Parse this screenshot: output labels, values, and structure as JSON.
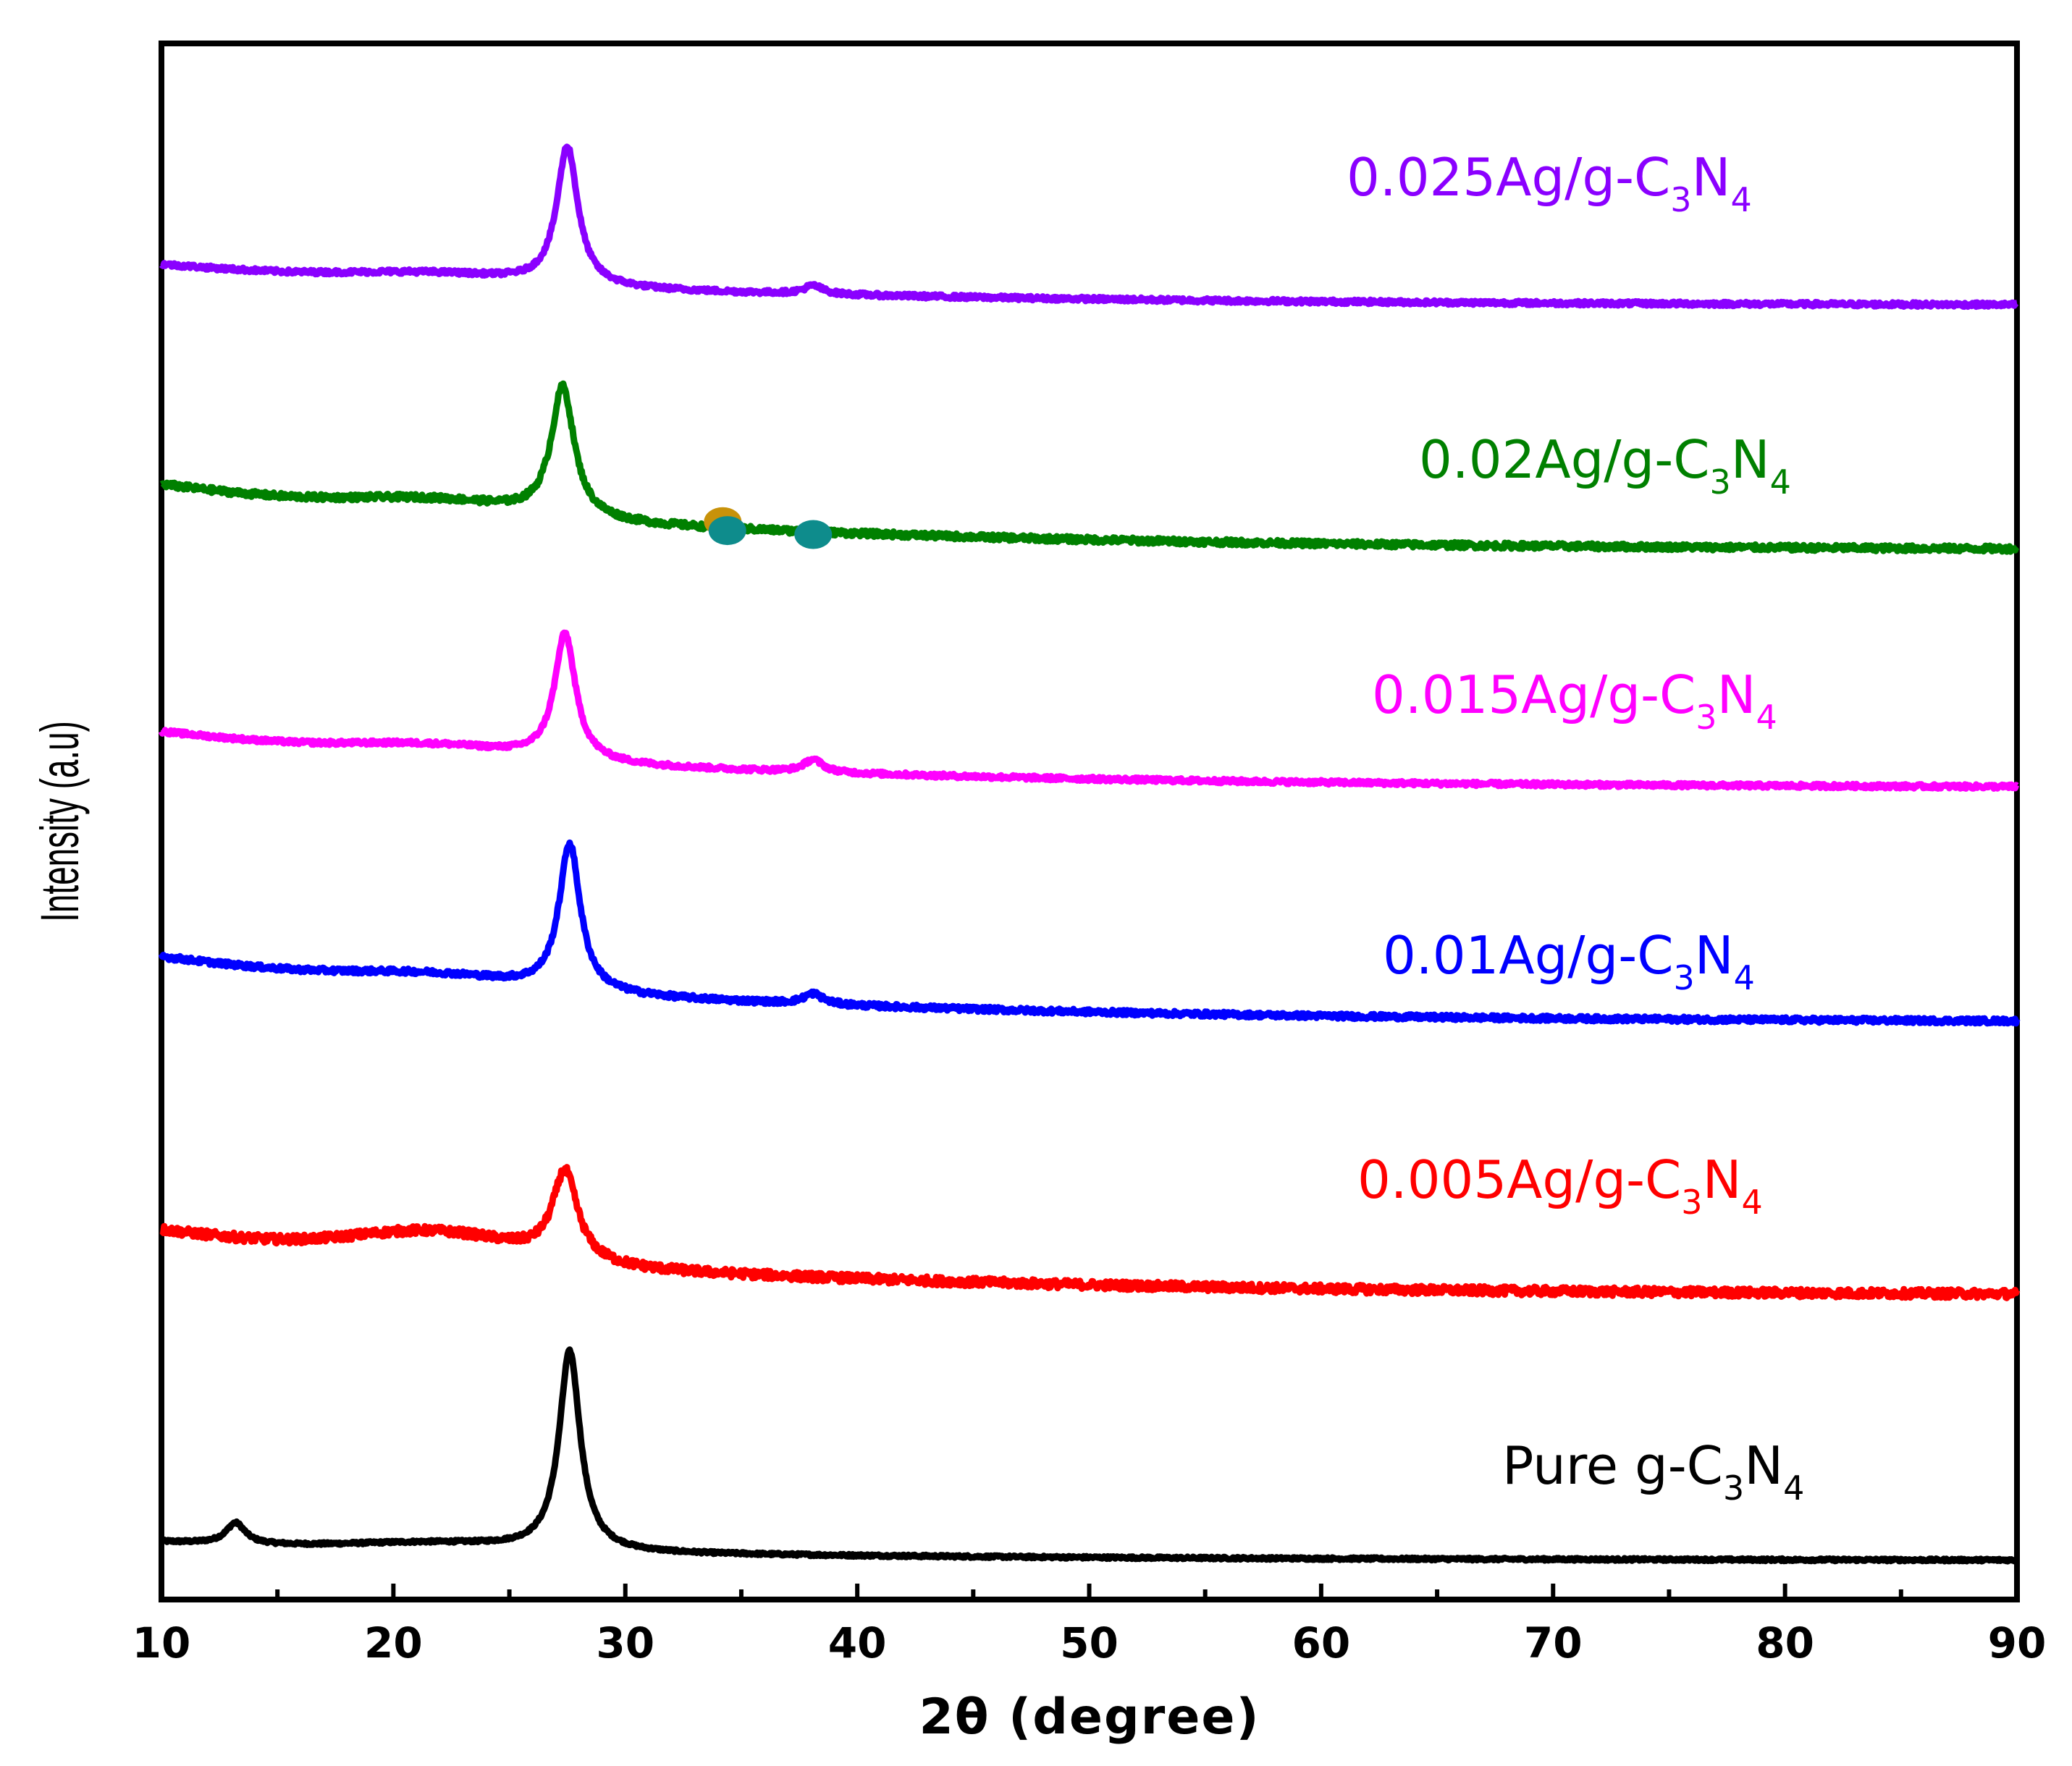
{
  "chart_data": {
    "type": "line",
    "title": "",
    "xlabel": "2θ (degree)",
    "ylabel": "Intensity (a.u)",
    "xlim": [
      10,
      90
    ],
    "xticks": [
      10,
      20,
      30,
      40,
      50,
      60,
      70,
      80,
      90
    ],
    "yticks_shown": false,
    "grid": false,
    "legend": "inline labels at right end of each trace",
    "series": [
      {
        "name": "Pure g-C3N4",
        "label_main": "Pure g-C",
        "label_sub1": "3",
        "label_mid": "N",
        "label_sub2": "4",
        "color": "#000000",
        "offset": 0,
        "baseline": 0.1,
        "peaks": [
          {
            "position": 27.6,
            "height": 0.95,
            "width": 0.55
          },
          {
            "position": 13.2,
            "height": 0.1,
            "width": 0.5
          }
        ],
        "hump_height": 0.03,
        "noise": 0.006
      },
      {
        "name": "0.005Ag/g-C3N4",
        "label_main": "0.005Ag/g-C",
        "label_sub1": "3",
        "label_mid": "N",
        "label_sub2": "4",
        "color": "#ff0000",
        "offset": 1.1,
        "baseline": 0.35,
        "peaks": [
          {
            "position": 27.4,
            "height": 0.42,
            "width": 0.65
          }
        ],
        "hump_height": 0.12,
        "noise": 0.02
      },
      {
        "name": "0.01Ag/g-C3N4",
        "label_main": "0.01Ag/g-C",
        "label_sub1": "3",
        "label_mid": "N",
        "label_sub2": "4",
        "color": "#0000ff",
        "offset": 2.4,
        "baseline": 0.35,
        "peaks": [
          {
            "position": 27.6,
            "height": 0.7,
            "width": 0.55
          },
          {
            "position": 38.1,
            "height": 0.05,
            "width": 0.5
          }
        ],
        "hump_height": 0.05,
        "noise": 0.012
      },
      {
        "name": "0.015Ag/g-C3N4",
        "label_main": "0.015Ag/g-C",
        "label_sub1": "3",
        "label_mid": "N",
        "label_sub2": "4",
        "color": "#ff00ff",
        "offset": 3.55,
        "baseline": 0.3,
        "peaks": [
          {
            "position": 27.4,
            "height": 0.6,
            "width": 0.55
          },
          {
            "position": 38.1,
            "height": 0.06,
            "width": 0.5
          }
        ],
        "hump_height": 0.05,
        "noise": 0.01
      },
      {
        "name": "0.02Ag/g-C3N4",
        "label_main": "0.02Ag/g-C",
        "label_sub1": "3",
        "label_mid": "N",
        "label_sub2": "4",
        "color": "#008000",
        "offset": 4.65,
        "baseline": 0.35,
        "peaks": [
          {
            "position": 27.3,
            "height": 0.62,
            "width": 0.6
          }
        ],
        "hump_height": 0.06,
        "noise": 0.014
      },
      {
        "name": "0.025Ag/g-C3N4",
        "label_main": "0.025Ag/g-C",
        "label_sub1": "3",
        "label_mid": "N",
        "label_sub2": "4",
        "color": "#8a00ff",
        "offset": 5.9,
        "baseline": 0.22,
        "peaks": [
          {
            "position": 27.5,
            "height": 0.66,
            "width": 0.55
          },
          {
            "position": 38.1,
            "height": 0.04,
            "width": 0.5
          }
        ],
        "hump_height": 0.04,
        "noise": 0.01
      }
    ],
    "markers": [
      {
        "x": 34.2,
        "series": "0.02Ag/g-C3N4",
        "color": "#c8920a"
      },
      {
        "x": 34.4,
        "series": "0.02Ag/g-C3N4",
        "color": "#0e8c8c"
      },
      {
        "x": 38.1,
        "series": "0.02Ag/g-C3N4",
        "color": "#0e8c8c"
      }
    ]
  }
}
